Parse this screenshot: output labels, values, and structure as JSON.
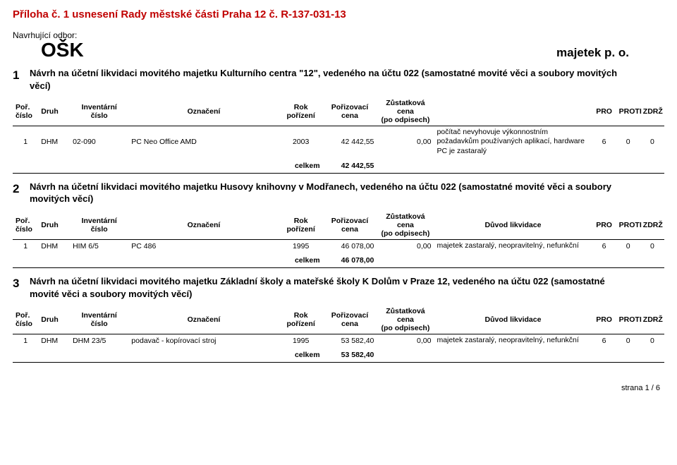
{
  "header": {
    "title": "Příloha č. 1 usnesení Rady městské části Praha 12 č. R-137-031-13",
    "proposing_label": "Navrhující odbor:",
    "department": "OŠK",
    "property_label": "majetek p. o."
  },
  "columns": {
    "por_cislo_l1": "Poř.",
    "por_cislo_l2": "číslo",
    "druh": "Druh",
    "inv_l1": "Inventární",
    "inv_l2": "číslo",
    "oznaceni": "Označení",
    "rok_l1": "Rok",
    "rok_l2": "pořízení",
    "poriz_l1": "Pořizovací",
    "poriz_l2": "cena",
    "zust_l1": "Zůstatková",
    "zust_l2": "cena",
    "zust_l3": "(po odpisech)",
    "duvod": "Důvod likvidace",
    "pro": "PRO",
    "proti": "PROTI",
    "zdrz": "ZDRŽ",
    "celkem": "celkem"
  },
  "sections": [
    {
      "num": "1",
      "text": "Návrh na účetní likvidaci movitého majetku Kulturního centra \"12\", vedeného na účtu 022 (samostatné movité věci a soubory movitých věcí)",
      "show_duvod_header": false,
      "rows": [
        {
          "por": "1",
          "druh": "DHM",
          "inv": "02-090",
          "ozn": "PC Neo Office AMD",
          "rok": "2003",
          "poriz": "42 442,55",
          "zust": "0,00",
          "reason": "počítač nevyhovuje výkonnostním požadavkům používaných aplikací, hardware PC je zastaralý",
          "pro": "6",
          "proti": "0",
          "zdrz": "0"
        }
      ],
      "sum": "42 442,55"
    },
    {
      "num": "2",
      "text": "Návrh na účetní likvidaci movitého majetku Husovy knihovny v Modřanech, vedeného na účtu 022 (samostatné movité věci a soubory movitých věcí)",
      "show_duvod_header": true,
      "rows": [
        {
          "por": "1",
          "druh": "DHM",
          "inv": "HIM 6/5",
          "ozn": "PC 486",
          "rok": "1995",
          "poriz": "46 078,00",
          "zust": "0,00",
          "reason": "majetek zastaralý, neopravitelný, nefunkční",
          "pro": "6",
          "proti": "0",
          "zdrz": "0"
        }
      ],
      "sum": "46 078,00"
    },
    {
      "num": "3",
      "text": "Návrh na účetní likvidaci movitého majetku Základní školy a mateřské školy K Dolům v Praze 12, vedeného na účtu 022 (samostatné movité věci a soubory movitých věcí)",
      "show_duvod_header": true,
      "rows": [
        {
          "por": "1",
          "druh": "DHM",
          "inv": "DHM 23/5",
          "ozn": "podavač - kopírovací stroj",
          "rok": "1995",
          "poriz": "53 582,40",
          "zust": "0,00",
          "reason": "majetek zastaralý, neopravitelný, nefunkční",
          "pro": "6",
          "proti": "0",
          "zdrz": "0"
        }
      ],
      "sum": "53 582,40"
    }
  ],
  "footer": {
    "page": "strana 1 / 6"
  }
}
